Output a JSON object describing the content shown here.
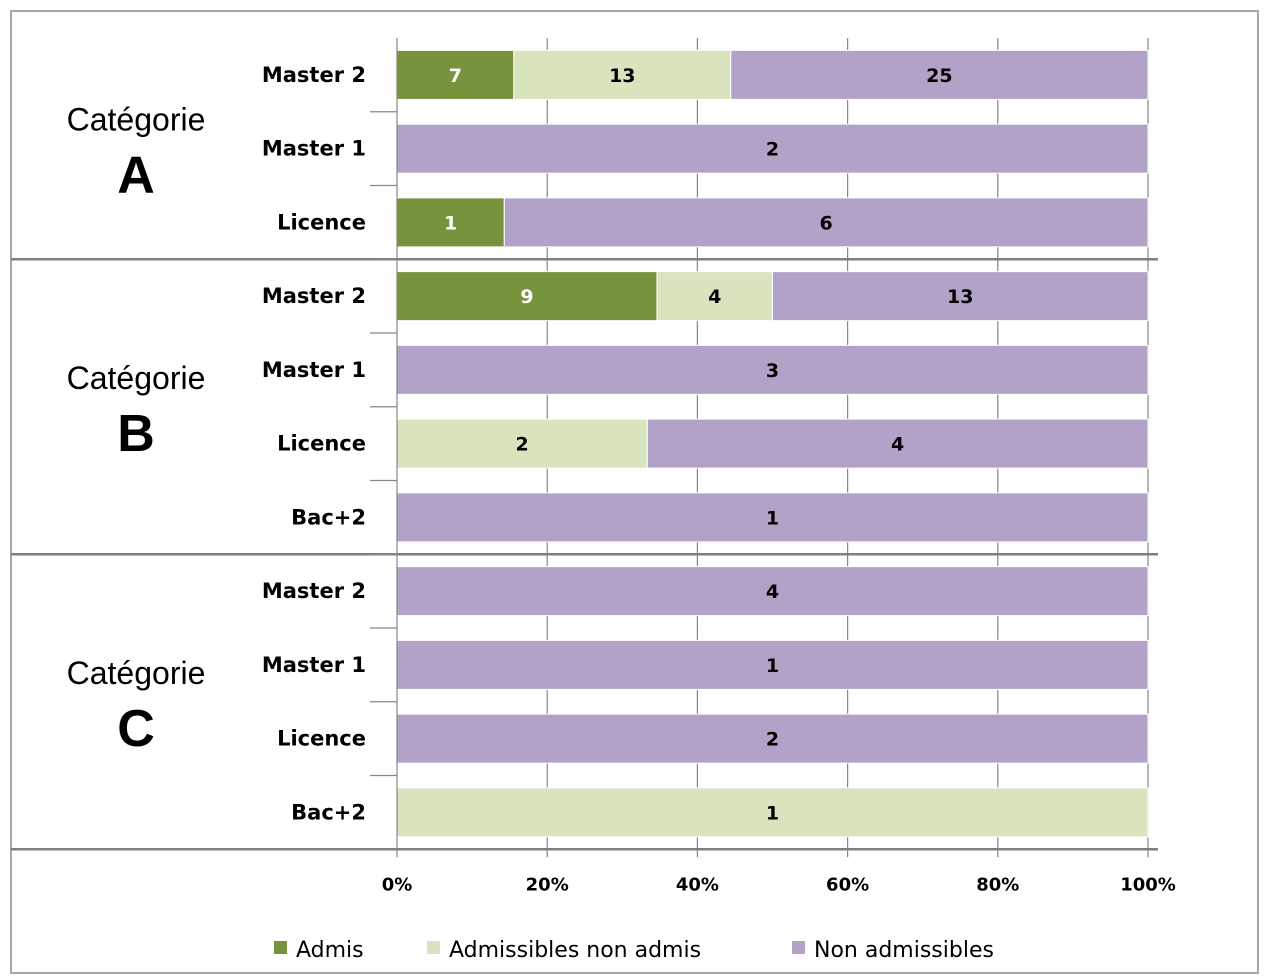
{
  "chart_data": {
    "type": "bar",
    "orientation": "horizontal",
    "stacking": "percent",
    "x_ticks": [
      "0%",
      "20%",
      "40%",
      "60%",
      "80%",
      "100%"
    ],
    "xlim": [
      0,
      100
    ],
    "legend_position": "bottom",
    "series": [
      {
        "name": "Admis",
        "color": "#77933c",
        "label_color": "#ffffff"
      },
      {
        "name": "Admissibles non admis",
        "color": "#d7e4bd",
        "label_color": "#000000"
      },
      {
        "name": "Non admissibles",
        "color": "#b3a2c7",
        "label_color": "#000000"
      }
    ],
    "groups": [
      {
        "word": "Catégorie",
        "letter": "A",
        "rows": [
          {
            "label": "Master 2",
            "values": [
              7,
              13,
              25
            ]
          },
          {
            "label": "Master 1",
            "values": [
              0,
              0,
              2
            ]
          },
          {
            "label": "Licence",
            "values": [
              1,
              0,
              6
            ]
          }
        ]
      },
      {
        "word": "Catégorie",
        "letter": "B",
        "rows": [
          {
            "label": "Master 2",
            "values": [
              9,
              4,
              13
            ]
          },
          {
            "label": "Master 1",
            "values": [
              0,
              0,
              3
            ]
          },
          {
            "label": "Licence",
            "values": [
              0,
              2,
              4
            ]
          },
          {
            "label": "Bac+2",
            "values": [
              0,
              0,
              1
            ]
          }
        ]
      },
      {
        "word": "Catégorie",
        "letter": "C",
        "rows": [
          {
            "label": "Master 2",
            "values": [
              0,
              0,
              4
            ]
          },
          {
            "label": "Master 1",
            "values": [
              0,
              0,
              1
            ]
          },
          {
            "label": "Licence",
            "values": [
              0,
              0,
              2
            ]
          },
          {
            "label": "Bac+2",
            "values": [
              0,
              1,
              0
            ]
          }
        ]
      }
    ]
  }
}
